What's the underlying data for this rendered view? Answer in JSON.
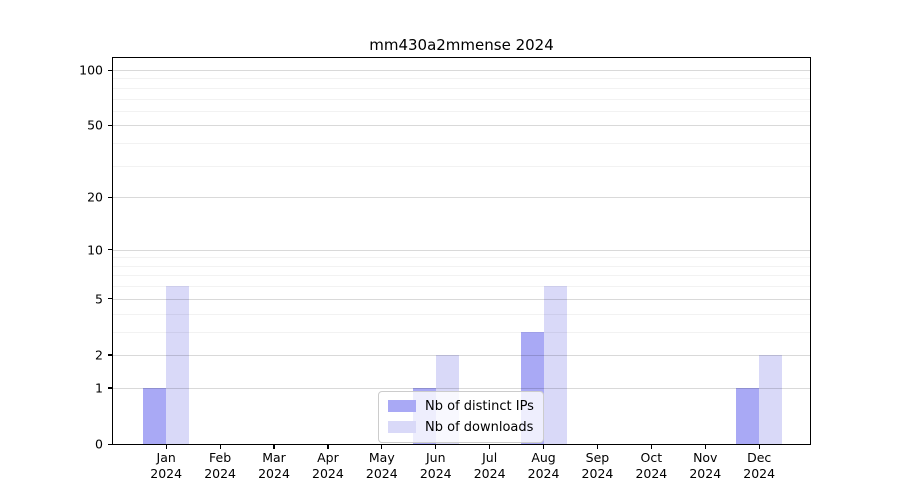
{
  "title": "mm430a2mmense 2024",
  "colors": {
    "distinct_ips_bar": "#a9a9f5",
    "downloads_bar": "#d9d9f8",
    "major_grid": "rgba(0,0,0,0.15)",
    "minor_grid": "rgba(0,0,0,0.05)",
    "axis": "#000000"
  },
  "legend": {
    "items": [
      {
        "label": "Nb of distinct IPs",
        "color_key": "distinct_ips_bar"
      },
      {
        "label": "Nb of downloads",
        "color_key": "downloads_bar"
      }
    ]
  },
  "chart_data": {
    "type": "bar",
    "title": "mm430a2mmense 2024",
    "xlabel": "",
    "ylabel": "",
    "scale": "log1p",
    "categories": [
      "Jan 2024",
      "Feb 2024",
      "Mar 2024",
      "Apr 2024",
      "May 2024",
      "Jun 2024",
      "Jul 2024",
      "Aug 2024",
      "Sep 2024",
      "Oct 2024",
      "Nov 2024",
      "Dec 2024"
    ],
    "series": [
      {
        "name": "Nb of distinct IPs",
        "color_key": "distinct_ips_bar",
        "values": [
          1,
          0,
          0,
          0,
          0,
          1,
          0,
          3,
          0,
          0,
          0,
          1
        ]
      },
      {
        "name": "Nb of downloads",
        "color_key": "downloads_bar",
        "values": [
          6,
          0,
          0,
          0,
          0,
          2,
          0,
          6,
          0,
          0,
          0,
          2
        ]
      }
    ],
    "yticks": [
      0,
      1,
      2,
      5,
      10,
      20,
      50,
      100
    ],
    "minor_gridlines": [
      3,
      4,
      6,
      7,
      8,
      9,
      30,
      40,
      60,
      70,
      80,
      90
    ],
    "ylim": [
      0,
      117
    ],
    "grid": true,
    "legend_position": "lower center"
  }
}
